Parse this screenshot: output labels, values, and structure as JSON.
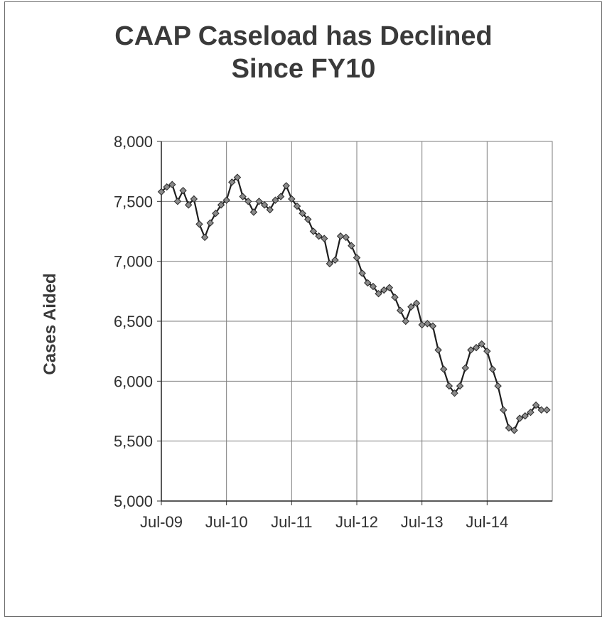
{
  "chart_data": {
    "type": "line",
    "title_lines": [
      "CAAP Caseload has Declined",
      "Since FY10"
    ],
    "ylabel": "Cases Aided",
    "xlabel": "",
    "ylim": [
      5000,
      8000
    ],
    "yticks": [
      5000,
      5500,
      6000,
      6500,
      7000,
      7500,
      8000
    ],
    "ytick_labels": [
      "5,000",
      "5,500",
      "6,000",
      "6,500",
      "7,000",
      "7,500",
      "8,000"
    ],
    "x_tick_labels": [
      "Jul-09",
      "Jul-10",
      "Jul-11",
      "Jul-12",
      "Jul-13",
      "Jul-14"
    ],
    "x_start": "Jul-09",
    "months_span": 72,
    "grid": true,
    "marker": "diamond",
    "series": [
      {
        "x": [
          "Jul-09",
          "Aug-09",
          "Sep-09",
          "Oct-09",
          "Nov-09",
          "Dec-09",
          "Jan-10",
          "Feb-10",
          "Mar-10",
          "Apr-10",
          "May-10",
          "Jun-10",
          "Jul-10",
          "Aug-10",
          "Sep-10",
          "Oct-10",
          "Nov-10",
          "Dec-10",
          "Jan-11",
          "Feb-11",
          "Mar-11",
          "Apr-11",
          "May-11",
          "Jun-11",
          "Jul-11",
          "Aug-11",
          "Sep-11",
          "Oct-11",
          "Nov-11",
          "Dec-11",
          "Jan-12",
          "Feb-12",
          "Mar-12",
          "Apr-12",
          "May-12",
          "Jun-12",
          "Jul-12",
          "Aug-12",
          "Sep-12",
          "Oct-12",
          "Nov-12",
          "Dec-12",
          "Jan-13",
          "Feb-13",
          "Mar-13",
          "Apr-13",
          "May-13",
          "Jun-13",
          "Jul-13",
          "Aug-13",
          "Sep-13",
          "Oct-13",
          "Nov-13",
          "Dec-13",
          "Jan-14",
          "Feb-14",
          "Mar-14",
          "Apr-14",
          "May-14",
          "Jun-14",
          "Jul-14",
          "Aug-14",
          "Sep-14",
          "Oct-14",
          "Nov-14",
          "Dec-14",
          "Jan-15",
          "Feb-15",
          "Mar-15",
          "Apr-15",
          "May-15",
          "Jun-15"
        ],
        "values": [
          7580,
          7620,
          7640,
          7500,
          7590,
          7470,
          7520,
          7310,
          7200,
          7320,
          7400,
          7470,
          7510,
          7660,
          7700,
          7540,
          7500,
          7410,
          7500,
          7470,
          7430,
          7510,
          7540,
          7630,
          7520,
          7460,
          7400,
          7350,
          7250,
          7210,
          7190,
          6980,
          7010,
          7210,
          7200,
          7130,
          7030,
          6900,
          6820,
          6790,
          6730,
          6760,
          6780,
          6700,
          6590,
          6500,
          6620,
          6650,
          6470,
          6480,
          6460,
          6260,
          6100,
          5960,
          5900,
          5960,
          6110,
          6260,
          6280,
          6310,
          6250,
          6100,
          5960,
          5760,
          5610,
          5590,
          5690,
          5710,
          5740,
          5800,
          5760,
          5760
        ]
      }
    ]
  }
}
